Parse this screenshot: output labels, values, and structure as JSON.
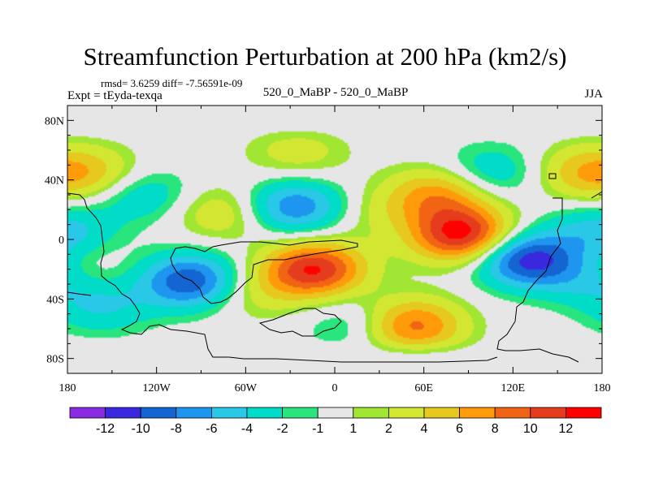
{
  "figure": {
    "title": "Streamfunction Perturbation at 200 hPa (km2/s)",
    "stats": "rmsd= 3.6259 diff= -7.56591e-09",
    "expt": "Expt = tEyda-texqa",
    "subtitle": "520_0_MaBP - 520_0_MaBP",
    "season": "JJA"
  },
  "chart_data": {
    "type": "heatmap",
    "title": "Streamfunction Perturbation at 200 hPa (km2/s)",
    "xlabel": "",
    "ylabel": "",
    "xlim": [
      -180,
      180
    ],
    "ylim": [
      -90,
      90
    ],
    "x_ticks": [
      {
        "value": -180,
        "label": "180"
      },
      {
        "value": -120,
        "label": "120W"
      },
      {
        "value": -60,
        "label": "60W"
      },
      {
        "value": 0,
        "label": "0"
      },
      {
        "value": 60,
        "label": "60E"
      },
      {
        "value": 120,
        "label": "120E"
      },
      {
        "value": 180,
        "label": "180"
      }
    ],
    "y_ticks": [
      {
        "value": 80,
        "label": "80N"
      },
      {
        "value": 40,
        "label": "40N"
      },
      {
        "value": 0,
        "label": "0"
      },
      {
        "value": -40,
        "label": "40S"
      },
      {
        "value": -80,
        "label": "80S"
      }
    ],
    "color_levels": [
      "-12",
      "-10",
      "-8",
      "-6",
      "-4",
      "-2",
      "-1",
      "1",
      "2",
      "4",
      "6",
      "8",
      "10",
      "12"
    ],
    "colors": [
      "#8a2be2",
      "#3a28e0",
      "#1464d2",
      "#1e96f0",
      "#28c8e6",
      "#00dcc8",
      "#28e67d",
      "#e6e6e6",
      "#a0e632",
      "#d2e632",
      "#e6c81e",
      "#ff9b0a",
      "#f06414",
      "#e63c1e",
      "#ff0000"
    ],
    "features": [
      {
        "lon": -97,
        "lat": -28,
        "value": -10
      },
      {
        "lon": -27,
        "lat": 22,
        "value": -8
      },
      {
        "lon": 128,
        "lat": -13,
        "value": -11
      },
      {
        "lon": -157,
        "lat": -45,
        "value": -4
      },
      {
        "lon": -130,
        "lat": 30,
        "value": -4
      },
      {
        "lon": 15,
        "lat": -58,
        "value": -3
      },
      {
        "lon": 105,
        "lat": 45,
        "value": -4
      },
      {
        "lon": 170,
        "lat": -25,
        "value": -5
      },
      {
        "lon": -162,
        "lat": 44,
        "value": 4
      },
      {
        "lon": -75,
        "lat": 18,
        "value": 4
      },
      {
        "lon": -25,
        "lat": 58,
        "value": 3
      },
      {
        "lon": 28,
        "lat": 18,
        "value": 2
      },
      {
        "lon": -14,
        "lat": -20,
        "value": 12
      },
      {
        "lon": 52,
        "lat": -58,
        "value": 9
      },
      {
        "lon": 86,
        "lat": 3,
        "value": 13
      },
      {
        "lon": 70,
        "lat": 30,
        "value": 7
      },
      {
        "lon": 168,
        "lat": 45,
        "value": 5
      },
      {
        "lon": -175,
        "lat": -20,
        "value": 3
      },
      {
        "lon": -55,
        "lat": -35,
        "value": 3
      },
      {
        "lon": 178,
        "lat": 5,
        "value": -5
      }
    ]
  }
}
